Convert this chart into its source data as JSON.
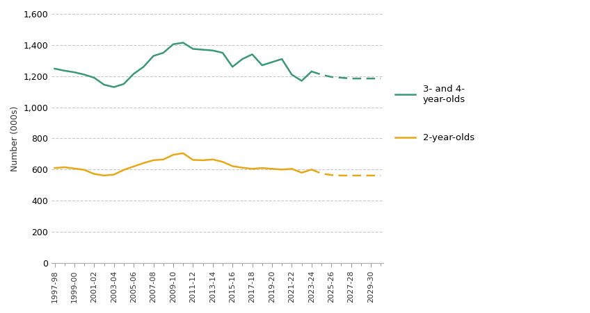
{
  "ylabel": "Number (000s)",
  "ylim": [
    0,
    1600
  ],
  "yticks": [
    0,
    200,
    400,
    600,
    800,
    1000,
    1200,
    1400,
    1600
  ],
  "x_labels": [
    "1997-98",
    "1999-00",
    "2001-02",
    "2003-04",
    "2005-06",
    "2007-08",
    "2009-10",
    "2011-12",
    "2013-14",
    "2015-16",
    "2017-18",
    "2019-20",
    "2021-22",
    "2023-24",
    "2025-26",
    "2027-28",
    "2029-30"
  ],
  "green_color": "#3a9878",
  "orange_color": "#e6a817",
  "green_solid_x": [
    0,
    1,
    2,
    3,
    4,
    5,
    6,
    7,
    8,
    9,
    10,
    11,
    12,
    13,
    14,
    15,
    16,
    17,
    18,
    19,
    20,
    21,
    22,
    23,
    24,
    25,
    26
  ],
  "green_solid_y": [
    1248,
    1235,
    1225,
    1210,
    1190,
    1145,
    1130,
    1150,
    1215,
    1260,
    1330,
    1350,
    1405,
    1415,
    1375,
    1370,
    1365,
    1350,
    1260,
    1310,
    1340,
    1270,
    1290,
    1310,
    1210,
    1170,
    1230
  ],
  "green_dashed_x": [
    26,
    27,
    28,
    29,
    30,
    31,
    32,
    33
  ],
  "green_dashed_y": [
    1230,
    1210,
    1195,
    1190,
    1185,
    1185,
    1185,
    1185
  ],
  "orange_solid_x": [
    0,
    1,
    2,
    3,
    4,
    5,
    6,
    7,
    8,
    9,
    10,
    11,
    12,
    13,
    14,
    15,
    16,
    17,
    18,
    19,
    20,
    21,
    22,
    23,
    24,
    25,
    26
  ],
  "orange_solid_y": [
    610,
    615,
    607,
    598,
    572,
    562,
    568,
    598,
    620,
    642,
    660,
    665,
    695,
    705,
    662,
    660,
    665,
    650,
    622,
    612,
    605,
    610,
    605,
    600,
    605,
    580,
    600
  ],
  "orange_dashed_x": [
    26,
    27,
    28,
    29,
    30,
    31,
    32,
    33
  ],
  "orange_dashed_y": [
    600,
    575,
    565,
    562,
    562,
    562,
    562,
    562
  ],
  "background_color": "#ffffff",
  "grid_color": "#c8c8c8",
  "figwidth": 8.48,
  "figheight": 4.51,
  "dpi": 100
}
